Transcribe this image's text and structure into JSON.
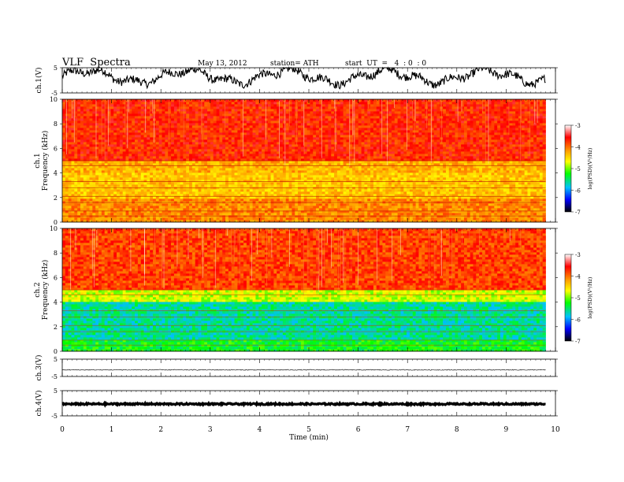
{
  "header": {
    "title": "VLF  Spectra",
    "date": "May 13, 2012",
    "station": "station= ATH",
    "start": "start  UT  =   4  : 0  : 0"
  },
  "chart_data": {
    "type": "heatmap",
    "title": "VLF  Spectra",
    "xlabel": "Time  (min)",
    "xlim": [
      0,
      10
    ],
    "x_ticks": [
      "0",
      "1",
      "2",
      "3",
      "4",
      "5",
      "6",
      "7",
      "8",
      "9",
      "10"
    ],
    "data_end_min": 9.8,
    "panels": [
      {
        "kind": "timeseries",
        "ylabel": "ch.1(V)",
        "ylim": [
          -5,
          5
        ],
        "y_ticks": [
          "5",
          "-5"
        ],
        "trace": "noisy waveform between -4 and +5 V"
      },
      {
        "kind": "spectrogram",
        "ylabel_channel": "ch.1",
        "ylabel": "Frequency  (kHz)",
        "ylim": [
          0,
          10
        ],
        "y_ticks": [
          "10",
          "8",
          "6",
          "4",
          "2",
          "0"
        ],
        "band_log10_psd": [
          {
            "f_from": 0,
            "f_to": 2,
            "value": -4.1
          },
          {
            "f_from": 2,
            "f_to": 4,
            "value": -4.4
          },
          {
            "f_from": 4,
            "f_to": 5,
            "value": -4.3
          },
          {
            "f_from": 5,
            "f_to": 10,
            "value": -3.7
          }
        ]
      },
      {
        "kind": "spectrogram",
        "ylabel_channel": "ch.2",
        "ylabel": "Frequency  (kHz)",
        "ylim": [
          0,
          10
        ],
        "y_ticks": [
          "10",
          "8",
          "6",
          "4",
          "2",
          "0"
        ],
        "band_log10_psd": [
          {
            "f_from": 0,
            "f_to": 1,
            "value": -5.3
          },
          {
            "f_from": 1,
            "f_to": 4,
            "value": -5.6
          },
          {
            "f_from": 4,
            "f_to": 5,
            "value": -4.8
          },
          {
            "f_from": 5,
            "f_to": 10,
            "value": -3.8
          }
        ]
      },
      {
        "kind": "timeseries",
        "ylabel": "ch.3(V)",
        "ylim": [
          -5,
          5
        ],
        "y_ticks": [
          "5",
          "-5"
        ],
        "trace": "flat near -1 V"
      },
      {
        "kind": "timeseries",
        "ylabel": "ch.4(V)",
        "ylim": [
          -5,
          5
        ],
        "y_ticks": [
          "5",
          "-5"
        ],
        "trace": "thick flat line near 0 V"
      }
    ],
    "colorbar": {
      "label": "log(PSD)(V²/Hz)",
      "range": [
        -7,
        -3
      ],
      "ticks": [
        "-3",
        "-4",
        "-5",
        "-6",
        "-7"
      ],
      "colors": [
        "#ffffff",
        "#ff0000",
        "#ffa000",
        "#ffff00",
        "#00ff00",
        "#00c0ff",
        "#0000ff",
        "#000000"
      ]
    }
  }
}
